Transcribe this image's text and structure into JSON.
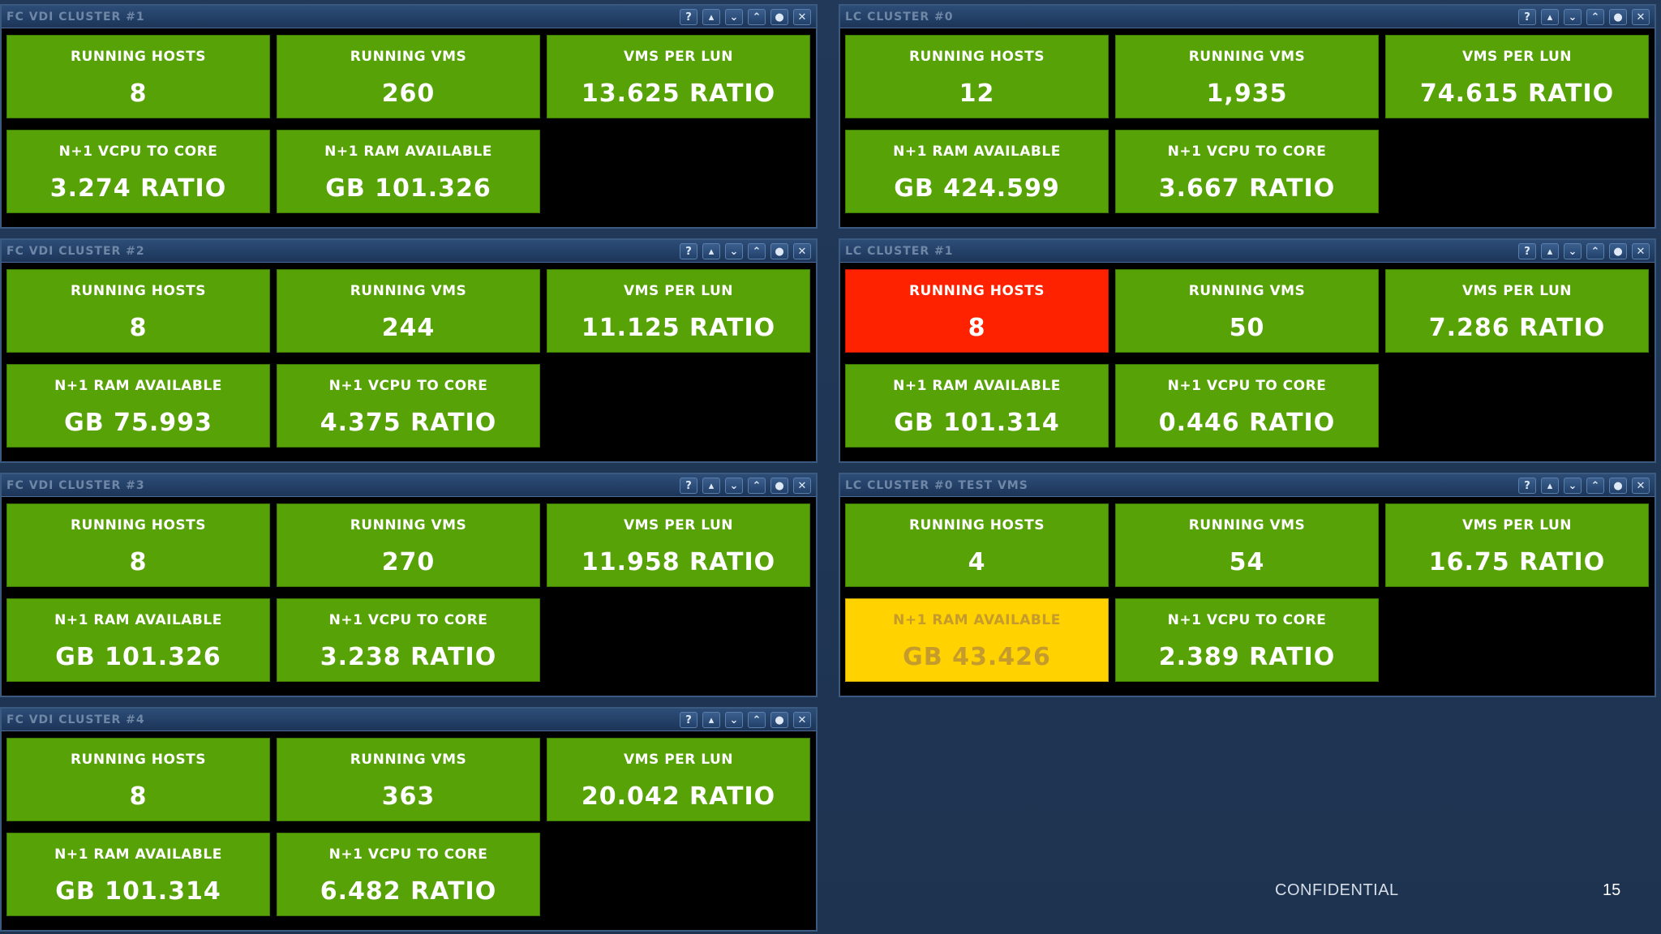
{
  "controls": {
    "help": "?",
    "minimize": "▴",
    "collapse": "⌄",
    "expand": "⌃",
    "refresh": "●",
    "close": "✕"
  },
  "panels": [
    {
      "title": "FC VDI CLUSTER #1",
      "tiles": [
        {
          "label": "RUNNING HOSTS",
          "value": "8"
        },
        {
          "label": "RUNNING VMS",
          "value": "260"
        },
        {
          "label": "VMS PER LUN",
          "value": "13.625 RATIO"
        },
        {
          "label": "N+1 VCPU TO CORE",
          "value": "3.274 RATIO"
        },
        {
          "label": "N+1 RAM AVAILABLE",
          "value": "GB 101.326"
        }
      ]
    },
    {
      "title": "LC CLUSTER #0",
      "tiles": [
        {
          "label": "RUNNING HOSTS",
          "value": "12"
        },
        {
          "label": "RUNNING VMS",
          "value": "1,935"
        },
        {
          "label": "VMS PER LUN",
          "value": "74.615 RATIO"
        },
        {
          "label": "N+1 RAM AVAILABLE",
          "value": "GB 424.599"
        },
        {
          "label": "N+1 VCPU TO CORE",
          "value": "3.667 RATIO"
        }
      ]
    },
    {
      "title": "FC VDI CLUSTER #2",
      "tiles": [
        {
          "label": "RUNNING HOSTS",
          "value": "8"
        },
        {
          "label": "RUNNING VMS",
          "value": "244"
        },
        {
          "label": "VMS PER LUN",
          "value": "11.125 RATIO"
        },
        {
          "label": "N+1 RAM AVAILABLE",
          "value": "GB 75.993"
        },
        {
          "label": "N+1 VCPU TO CORE",
          "value": "4.375 RATIO"
        }
      ]
    },
    {
      "title": "LC CLUSTER #1",
      "tiles": [
        {
          "label": "RUNNING HOSTS",
          "value": "8",
          "status": "red"
        },
        {
          "label": "RUNNING VMS",
          "value": "50"
        },
        {
          "label": "VMS PER LUN",
          "value": "7.286 RATIO"
        },
        {
          "label": "N+1 RAM AVAILABLE",
          "value": "GB 101.314"
        },
        {
          "label": "N+1 VCPU TO CORE",
          "value": "0.446 RATIO"
        }
      ]
    },
    {
      "title": "FC VDI CLUSTER #3",
      "tiles": [
        {
          "label": "RUNNING HOSTS",
          "value": "8"
        },
        {
          "label": "RUNNING VMS",
          "value": "270"
        },
        {
          "label": "VMS PER LUN",
          "value": "11.958 RATIO"
        },
        {
          "label": "N+1 RAM AVAILABLE",
          "value": "GB 101.326"
        },
        {
          "label": "N+1 VCPU TO CORE",
          "value": "3.238 RATIO"
        }
      ]
    },
    {
      "title": "LC CLUSTER #0 TEST VMS",
      "tiles": [
        {
          "label": "RUNNING HOSTS",
          "value": "4"
        },
        {
          "label": "RUNNING VMS",
          "value": "54"
        },
        {
          "label": "VMS PER LUN",
          "value": "16.75 RATIO"
        },
        {
          "label": "N+1 RAM AVAILABLE",
          "value": "GB 43.426",
          "status": "yellow"
        },
        {
          "label": "N+1 VCPU TO CORE",
          "value": "2.389 RATIO"
        }
      ]
    },
    {
      "title": "FC VDI CLUSTER #4",
      "tiles": [
        {
          "label": "RUNNING HOSTS",
          "value": "8"
        },
        {
          "label": "RUNNING VMS",
          "value": "363"
        },
        {
          "label": "VMS PER LUN",
          "value": "20.042 RATIO"
        },
        {
          "label": "N+1 RAM AVAILABLE",
          "value": "GB 101.314"
        },
        {
          "label": "N+1 VCPU TO CORE",
          "value": "6.482 RATIO"
        }
      ]
    }
  ],
  "footer": {
    "label": "CONFIDENTIAL",
    "page_number": "15"
  },
  "colors": {
    "ok": "#57a206",
    "critical": "#ff2200",
    "warning": "#ffd200"
  }
}
